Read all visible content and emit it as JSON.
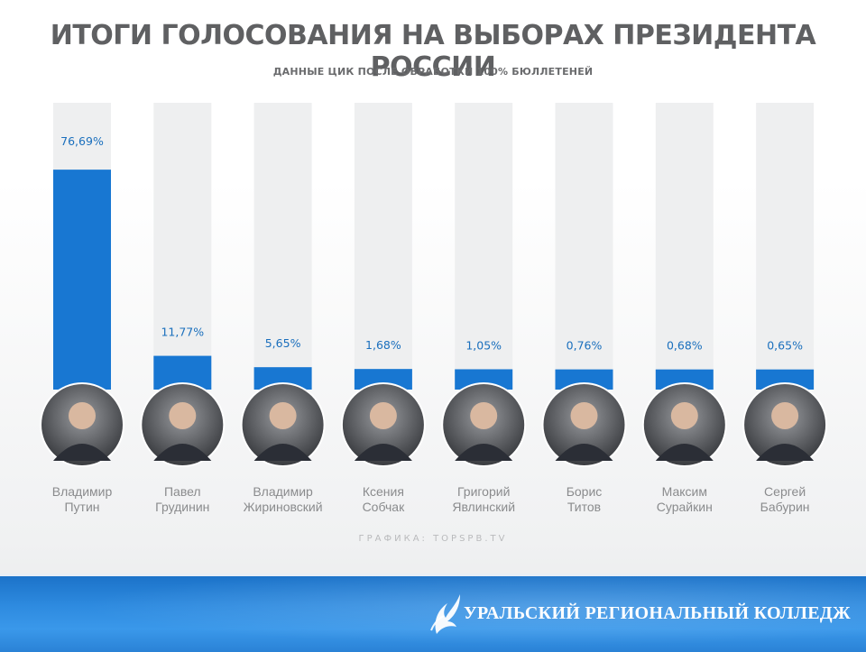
{
  "header": {
    "title": "ИТОГИ ГОЛОСОВАНИЯ НА ВЫБОРАХ ПРЕЗИДЕНТА РОССИИ",
    "subtitle": "ДАННЫЕ ЦИК ПОСЛЕ ОБРАБОТКИ 100% БЮЛЛЕТЕНЕЙ"
  },
  "chart_data": {
    "type": "bar",
    "title": "ИТОГИ ГОЛОСОВАНИЯ НА ВЫБОРАХ ПРЕЗИДЕНТА РОССИИ",
    "subtitle": "ДАННЫЕ ЦИК ПОСЛЕ ОБРАБОТКИ 100% БЮЛЛЕТЕНЕЙ",
    "categories": [
      [
        "Владимир",
        "Путин"
      ],
      [
        "Павел",
        "Грудинин"
      ],
      [
        "Владимир",
        "Жириновский"
      ],
      [
        "Ксения",
        "Собчак"
      ],
      [
        "Григорий",
        "Явлинский"
      ],
      [
        "Борис",
        "Титов"
      ],
      [
        "Максим",
        "Сурайкин"
      ],
      [
        "Сергей",
        "Бабурин"
      ]
    ],
    "values": [
      76.69,
      11.77,
      5.65,
      1.68,
      1.05,
      0.76,
      0.68,
      0.65
    ],
    "value_labels": [
      "76,69%",
      "11,77%",
      "5,65%",
      "1,68%",
      "1,05%",
      "0,76%",
      "0,68%",
      "0,65%"
    ],
    "xlabel": "",
    "ylabel": "",
    "ylim": [
      0,
      100
    ],
    "grid": false,
    "legend": "none",
    "colors": {
      "bar": "#1877d2",
      "track": "#eeeff0",
      "label": "#1a6fbd"
    }
  },
  "credit": "ГРАФИКА: TOPSPB.TV",
  "footer": {
    "text": "УРАЛЬСКИЙ РЕГИОНАЛЬНЫЙ КОЛЛЕДЖ",
    "logo_icon": "college-logo-icon"
  }
}
